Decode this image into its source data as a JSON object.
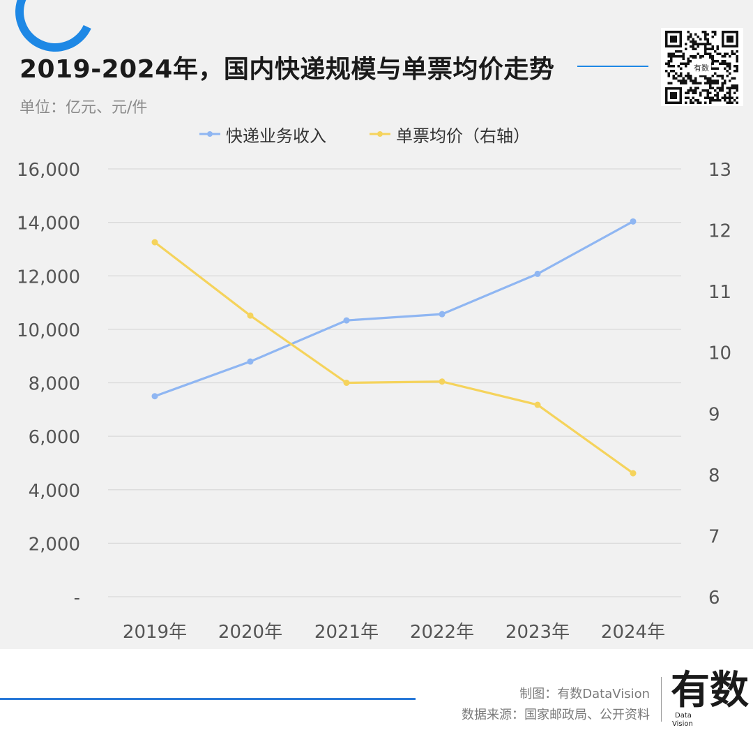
{
  "header": {
    "title": "2019-2024年，国内快递规模与单票均价走势",
    "unit": "单位：亿元、元/件",
    "qr_label": "有数"
  },
  "colors": {
    "accent": "#1e88e5",
    "revenue": "#8fb6f2",
    "price": "#f5d35c",
    "grid": "#d9d9d9",
    "tick": "#555555"
  },
  "chart_data": {
    "type": "line",
    "categories": [
      "2019年",
      "2020年",
      "2021年",
      "2022年",
      "2023年",
      "2024年"
    ],
    "series": [
      {
        "name": "快递业务收入",
        "axis": "left",
        "values": [
          7498,
          8795,
          10333,
          10567,
          12074,
          14034
        ]
      },
      {
        "name": "单票均价（右轴）",
        "axis": "right",
        "values": [
          11.8,
          10.6,
          9.5,
          9.52,
          9.14,
          8.02
        ]
      }
    ],
    "y_left": {
      "min": 0,
      "max": 16000,
      "ticks": [
        0,
        2000,
        4000,
        6000,
        8000,
        10000,
        12000,
        14000,
        16000
      ],
      "tick_labels": [
        "-",
        "2,000",
        "4,000",
        "6,000",
        "8,000",
        "10,000",
        "12,000",
        "14,000",
        "16,000"
      ]
    },
    "y_right": {
      "min": 6,
      "max": 13,
      "ticks": [
        6,
        7,
        8,
        9,
        10,
        11,
        12,
        13
      ],
      "tick_labels": [
        "6",
        "7",
        "8",
        "9",
        "10",
        "11",
        "12",
        "13"
      ]
    },
    "grid": true,
    "legend": "top-center"
  },
  "footer": {
    "credit": "制图：有数DataVision",
    "source": "数据来源：国家邮政局、公开资料",
    "logo_main": "有数",
    "logo_sub1": "Data",
    "logo_sub2": "Vision"
  }
}
